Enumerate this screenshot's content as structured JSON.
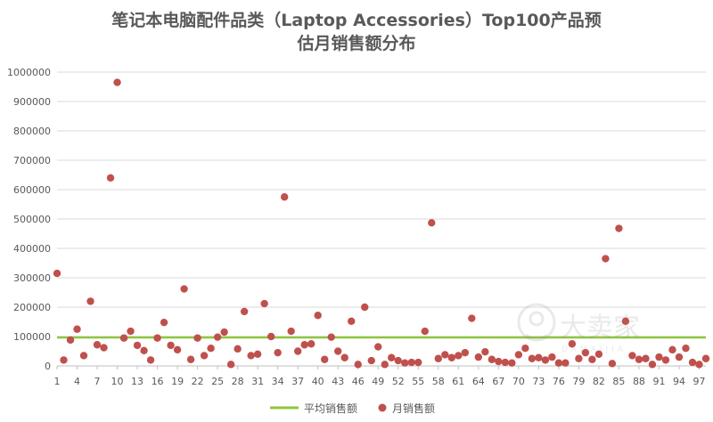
{
  "chart_data": {
    "type": "scatter",
    "title_line1": "笔记本电脑配件品类（Laptop Accessories）Top100产品预",
    "title_line2": "估月销售额分布",
    "xlabel": "",
    "ylabel": "",
    "ylim": [
      0,
      1000000
    ],
    "y_ticks": [
      "0",
      "100000",
      "200000",
      "300000",
      "400000",
      "500000",
      "600000",
      "700000",
      "800000",
      "900000",
      "1000000"
    ],
    "xlim": [
      1,
      98
    ],
    "x_ticks": [
      "1",
      "4",
      "7",
      "10",
      "13",
      "16",
      "19",
      "22",
      "25",
      "28",
      "31",
      "34",
      "37",
      "40",
      "43",
      "46",
      "49",
      "52",
      "55",
      "58",
      "61",
      "64",
      "67",
      "70",
      "73",
      "76",
      "79",
      "82",
      "85",
      "88",
      "91",
      "94",
      "97"
    ],
    "grid": true,
    "legend_position": "bottom",
    "average_value": 97000,
    "series": [
      {
        "name": "月销售额",
        "color": "#c0504d",
        "x": [
          1,
          2,
          3,
          4,
          5,
          6,
          7,
          8,
          9,
          10,
          11,
          12,
          13,
          14,
          15,
          16,
          17,
          18,
          19,
          20,
          21,
          22,
          23,
          24,
          25,
          26,
          27,
          28,
          29,
          30,
          31,
          32,
          33,
          34,
          35,
          36,
          37,
          38,
          39,
          40,
          41,
          42,
          43,
          44,
          45,
          46,
          47,
          48,
          49,
          50,
          51,
          52,
          53,
          54,
          55,
          56,
          57,
          58,
          59,
          60,
          61,
          62,
          63,
          64,
          65,
          66,
          67,
          68,
          69,
          70,
          71,
          72,
          73,
          74,
          75,
          76,
          77,
          78,
          79,
          80,
          81,
          82,
          83,
          84,
          85,
          86,
          87,
          88,
          89,
          90,
          91,
          92,
          93,
          94,
          95,
          96,
          97,
          98
        ],
        "y": [
          315000,
          20000,
          88000,
          125000,
          35000,
          220000,
          72000,
          62000,
          640000,
          965000,
          95000,
          118000,
          70000,
          52000,
          20000,
          95000,
          148000,
          70000,
          55000,
          262000,
          22000,
          95000,
          35000,
          60000,
          98000,
          115000,
          5000,
          58000,
          185000,
          35000,
          40000,
          212000,
          100000,
          45000,
          575000,
          118000,
          50000,
          72000,
          75000,
          172000,
          22000,
          98000,
          50000,
          28000,
          152000,
          5000,
          200000,
          18000,
          65000,
          5000,
          28000,
          18000,
          10000,
          12000,
          12000,
          118000,
          487000,
          25000,
          38000,
          28000,
          35000,
          45000,
          162000,
          30000,
          48000,
          22000,
          15000,
          12000,
          10000,
          38000,
          60000,
          25000,
          28000,
          20000,
          30000,
          10000,
          10000,
          75000,
          25000,
          45000,
          22000,
          40000,
          365000,
          8000,
          468000,
          152000,
          35000,
          22000,
          25000,
          5000,
          30000,
          20000,
          55000,
          30000,
          60000,
          12000,
          5000,
          25000
        ]
      },
      {
        "name": "平均销售额",
        "color": "#8fc63f",
        "type": "line"
      }
    ]
  },
  "watermark": {
    "text_cn": "大卖家",
    "text_en": "DAMAIJIA"
  }
}
